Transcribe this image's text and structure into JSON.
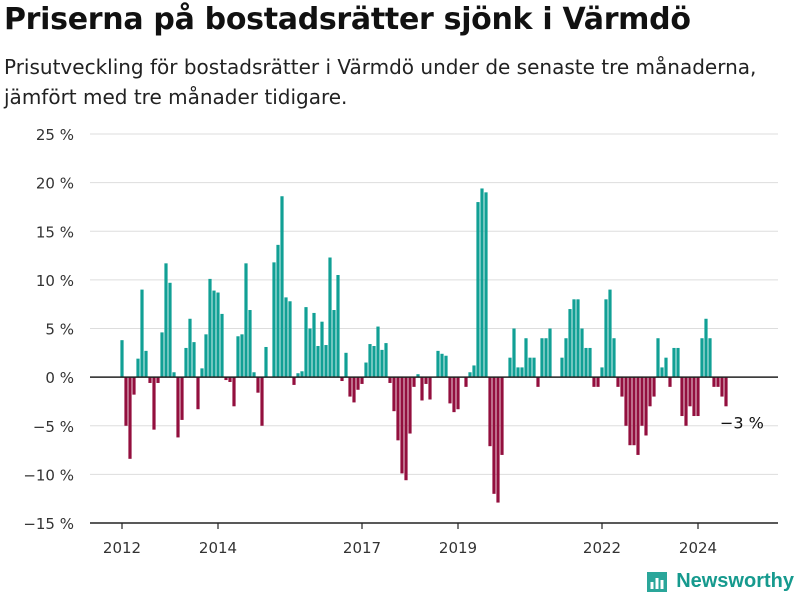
{
  "title": "Priserna på bostadsrätter sjönk i Värmdö",
  "subtitle": "Prisutveckling för bostadsrätter i Värmdö under de senaste tre månaderna, jämfört med tre månader tidigare.",
  "brand": "Newsworthy",
  "colors": {
    "positive": "#11a095",
    "negative": "#930f3e",
    "grid": "#dddddd",
    "axis": "#222222",
    "brand": "#169a8e"
  },
  "chart_data": {
    "type": "bar",
    "unit": "%",
    "ylim": [
      -15,
      25
    ],
    "yticks": [
      -15,
      -10,
      -5,
      0,
      5,
      10,
      15,
      20,
      25
    ],
    "ytick_labels": [
      "−15 %",
      "−10 %",
      "−5 %",
      "0 %",
      "5 %",
      "10 %",
      "15 %",
      "20 %",
      "25 %"
    ],
    "xtick_labels": [
      "2012",
      "2014",
      "2017",
      "2019",
      "2022",
      "2024"
    ],
    "xtick_positions": [
      0,
      24,
      60,
      84,
      120,
      144
    ],
    "grid": true,
    "annotation": {
      "label": "−3 %",
      "index": 155
    },
    "values": [
      3.8,
      -5,
      -8.4,
      -1.8,
      1.9,
      9,
      2.7,
      -0.6,
      -5.4,
      -0.6,
      4.6,
      11.7,
      9.7,
      0.5,
      -6.2,
      -4.4,
      3,
      6,
      3.6,
      -3.3,
      0.9,
      4.4,
      10.1,
      8.9,
      8.7,
      6.5,
      -0.3,
      -0.5,
      -3,
      4.2,
      4.4,
      11.7,
      6.9,
      0.5,
      -1.6,
      -5,
      3.1,
      0,
      11.8,
      13.6,
      18.6,
      8.2,
      7.8,
      -0.8,
      0.4,
      0.6,
      7.2,
      5,
      6.6,
      3.2,
      5.7,
      3.3,
      12.3,
      6.9,
      10.5,
      -0.4,
      2.5,
      -2,
      -2.6,
      -1.3,
      -0.7,
      1.5,
      3.4,
      3.2,
      5.2,
      2.8,
      3.5,
      -0.6,
      -3.5,
      -6.5,
      -9.9,
      -10.6,
      -5.8,
      -1,
      0.3,
      -2.4,
      -0.7,
      -2.3,
      0,
      2.7,
      2.4,
      2.2,
      -2.7,
      -3.6,
      -3.3,
      0,
      -1,
      0.5,
      1.2,
      18,
      19.4,
      19,
      -7.1,
      -12,
      -12.9,
      -8,
      0,
      2,
      5,
      1,
      1,
      4,
      2,
      2,
      -1,
      4,
      4,
      5,
      0,
      0,
      2,
      4,
      7,
      8,
      8,
      5,
      3,
      3,
      -1,
      -1,
      1,
      8,
      9,
      4,
      -1,
      -2,
      -5,
      -7,
      -7,
      -8,
      -5,
      -6,
      -3,
      -2,
      4,
      1,
      2,
      -1,
      3,
      3,
      -4,
      -5,
      -3,
      -4,
      -4,
      4,
      6,
      4,
      -1,
      -1,
      -2,
      -3
    ]
  }
}
